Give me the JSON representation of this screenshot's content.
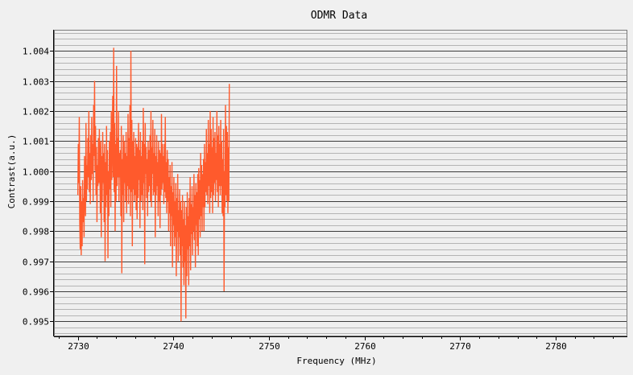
{
  "chart_data": {
    "type": "line",
    "title": "ODMR Data",
    "xlabel": "Frequency (MHz)",
    "ylabel": "Contrast(a.u.)",
    "xlim": [
      2727.5,
      2787.5
    ],
    "ylim": [
      0.9945,
      1.0047
    ],
    "xticks": [
      2730,
      2740,
      2750,
      2760,
      2770,
      2780
    ],
    "yticks": [
      0.995,
      0.996,
      0.997,
      0.998,
      0.999,
      1.0,
      1.001,
      1.002,
      1.003,
      1.004
    ],
    "ytick_labels": [
      "0.995",
      "0.996",
      "0.997",
      "0.998",
      "0.999",
      "1.000",
      "1.001",
      "1.002",
      "1.003",
      "1.004"
    ],
    "grid": true,
    "series": [
      {
        "color": "#ff5a2c",
        "x_start": 2730,
        "x_step": 0.05,
        "values": [
          0.9992,
          1.0009,
          0.9996,
          1.0018,
          0.9983,
          0.9974,
          0.9995,
          0.9972,
          0.999,
          0.9975,
          0.9997,
          0.9983,
          0.9991,
          0.9978,
          1.0005,
          0.9992,
          0.9985,
          1.0016,
          0.999,
          1.0002,
          0.9994,
          1.0011,
          0.9998,
          1.002,
          0.9993,
          1.0006,
          0.9989,
          1.0012,
          0.9997,
          1.0018,
          0.9999,
          1.0009,
          0.999,
          1.0022,
          1.0005,
          1.003,
          1.0,
          1.0015,
          0.9992,
          1.0008,
          0.9983,
          1.0002,
          0.9995,
          1.0011,
          0.9996,
          1.0014,
          1.0003,
          0.9986,
          1.001,
          0.9978,
          1.0005,
          0.999,
          1.0013,
          0.9996,
          1.0006,
          0.9983,
          1.0009,
          0.997,
          1.0003,
          0.9988,
          1.0015,
          0.9992,
          1.0007,
          0.9971,
          1.0,
          0.9985,
          1.001,
          0.9994,
          1.0013,
          0.9988,
          1.002,
          0.9997,
          1.0009,
          1.0025,
          0.9998,
          1.0041,
          0.9993,
          1.0016,
          0.998,
          1.0009,
          0.999,
          1.0035,
          0.9995,
          1.0011,
          0.9998,
          1.002,
          0.999,
          1.0006,
          0.9998,
          1.0007,
          0.9985,
          1.0015,
          0.9966,
          1.0004,
          0.9992,
          1.0012,
          0.9983,
          1.001,
          0.9996,
          1.0006,
          0.999,
          1.0013,
          0.9986,
          1.0005,
          0.9995,
          1.0019,
          0.9989,
          1.0011,
          0.9994,
          1.0022,
          0.9985,
          1.004,
          0.9993,
          1.0017,
          0.9975,
          1.001,
          0.9994,
          1.0013,
          0.999,
          1.0005,
          0.9992,
          1.0011,
          0.9987,
          1.0009,
          0.9984,
          1.0008,
          0.9991,
          1.0016,
          0.9997,
          1.0007,
          0.9981,
          1.0013,
          0.999,
          1.0005,
          0.9992,
          1.001,
          0.9987,
          1.0021,
          0.9996,
          1.0009,
          0.9969,
          1.0016,
          0.9999,
          1.0008,
          0.9991,
          1.0004,
          0.9985,
          1.001,
          0.9993,
          1.0007,
          0.9995,
          1.0012,
          0.999,
          1.002,
          0.9988,
          1.0008,
          0.9999,
          1.0017,
          0.9992,
          1.0006,
          0.9993,
          1.0014,
          0.9978,
          1.0005,
          0.9992,
          1.0012,
          0.9995,
          1.0003,
          0.9985,
          1.001,
          0.999,
          1.0007,
          0.9981,
          1.0006,
          0.9992,
          1.0019,
          0.9994,
          1.0009,
          0.9996,
          1.0005,
          0.9989,
          1.0009,
          0.9993,
          1.0018,
          0.9991,
          1.0003,
          0.9986,
          1.0007,
          0.999,
          1.0004,
          0.998,
          0.9998,
          0.9986,
          1.0002,
          0.9975,
          0.9995,
          0.9985,
          1.0003,
          0.9968,
          0.9993,
          0.9982,
          0.9998,
          0.9975,
          0.999,
          0.9978,
          0.9996,
          0.9965,
          0.9991,
          0.998,
          0.9999,
          0.997,
          0.9987,
          0.9978,
          0.9994,
          0.9972,
          0.999,
          0.995,
          0.9987,
          0.9975,
          0.9992,
          0.9968,
          0.9984,
          0.9962,
          0.999,
          0.997,
          0.9982,
          0.9951,
          0.9988,
          0.9965,
          0.9993,
          0.9974,
          0.9985,
          0.9962,
          0.9991,
          0.9975,
          0.9998,
          0.9967,
          0.9989,
          0.9979,
          0.9995,
          0.9972,
          0.9988,
          0.998,
          0.9999,
          0.9977,
          0.9992,
          0.9968,
          0.9996,
          0.9982,
          0.9993,
          0.9975,
          0.9999,
          0.9972,
          1.0001,
          0.9984,
          0.9997,
          0.9978,
          1.0006,
          0.9985,
          1.0002,
          0.998,
          0.9999,
          0.9988,
          1.0004,
          0.998,
          1.0009,
          0.9988,
          1.0003,
          0.9993,
          1.0014,
          0.9992,
          1.0006,
          0.9989,
          1.0017,
          0.9995,
          1.0009,
          0.9986,
          1.002,
          0.9991,
          1.0014,
          0.9993,
          1.0008,
          0.9986,
          1.0018,
          0.9992,
          1.0011,
          0.9996,
          1.0013,
          0.999,
          1.0006,
          0.9997,
          1.002,
          0.9993,
          1.0012,
          0.9988,
          1.0015,
          0.9995,
          1.0009,
          0.9992,
          1.0017,
          0.9995,
          1.001,
          0.9986,
          1.0004,
          0.9985,
          1.0014,
          0.996,
          1.0,
          0.9988,
          1.0022,
          0.9992,
          1.0015,
          0.999,
          1.0013,
          0.9986,
          1.0008,
          0.999,
          1.0029
        ]
      }
    ]
  }
}
